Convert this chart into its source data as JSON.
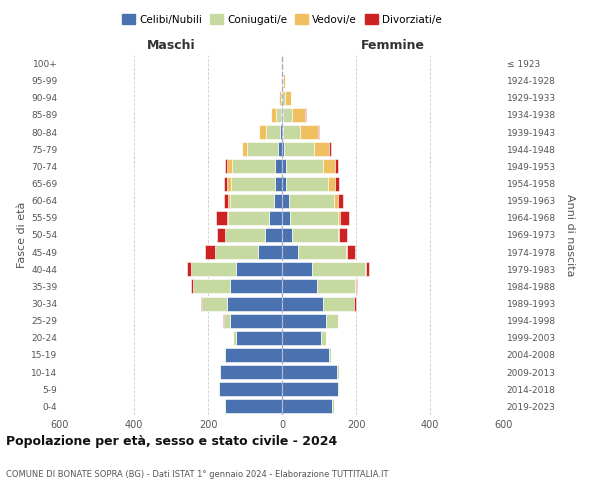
{
  "age_groups": [
    "0-4",
    "5-9",
    "10-14",
    "15-19",
    "20-24",
    "25-29",
    "30-34",
    "35-39",
    "40-44",
    "45-49",
    "50-54",
    "55-59",
    "60-64",
    "65-69",
    "70-74",
    "75-79",
    "80-84",
    "85-89",
    "90-94",
    "95-99",
    "100+"
  ],
  "birth_years": [
    "2019-2023",
    "2014-2018",
    "2009-2013",
    "2004-2008",
    "1999-2003",
    "1994-1998",
    "1989-1993",
    "1984-1988",
    "1979-1983",
    "1974-1978",
    "1969-1973",
    "1964-1968",
    "1959-1963",
    "1954-1958",
    "1949-1953",
    "1944-1948",
    "1939-1943",
    "1934-1938",
    "1929-1933",
    "1924-1928",
    "≤ 1923"
  ],
  "colors": {
    "celibi": "#4a72b0",
    "coniugati": "#c5d9a0",
    "vedovi": "#f0c060",
    "divorziati": "#cc2222"
  },
  "males": {
    "celibi": [
      155,
      170,
      168,
      155,
      125,
      140,
      150,
      140,
      125,
      65,
      45,
      35,
      22,
      18,
      20,
      12,
      5,
      3,
      0,
      0,
      0
    ],
    "coniugati": [
      2,
      2,
      2,
      2,
      8,
      18,
      65,
      100,
      120,
      115,
      108,
      112,
      118,
      120,
      115,
      82,
      38,
      12,
      4,
      1,
      0
    ],
    "vedovi": [
      0,
      0,
      0,
      0,
      0,
      0,
      0,
      0,
      2,
      2,
      2,
      3,
      5,
      10,
      15,
      15,
      20,
      15,
      5,
      0,
      0
    ],
    "divorziati": [
      0,
      0,
      0,
      0,
      0,
      2,
      5,
      5,
      10,
      25,
      20,
      28,
      12,
      10,
      5,
      0,
      0,
      0,
      0,
      0,
      0
    ]
  },
  "females": {
    "celibi": [
      135,
      150,
      148,
      128,
      105,
      120,
      112,
      95,
      82,
      42,
      28,
      22,
      18,
      12,
      10,
      5,
      3,
      2,
      0,
      0,
      0
    ],
    "coniugati": [
      5,
      5,
      5,
      5,
      15,
      30,
      82,
      102,
      142,
      132,
      122,
      128,
      122,
      112,
      102,
      82,
      45,
      25,
      8,
      2,
      1
    ],
    "vedovi": [
      0,
      0,
      0,
      0,
      0,
      0,
      0,
      2,
      2,
      3,
      5,
      8,
      10,
      20,
      30,
      40,
      50,
      35,
      15,
      5,
      2
    ],
    "divorziati": [
      0,
      0,
      0,
      0,
      0,
      2,
      5,
      5,
      10,
      20,
      22,
      22,
      15,
      10,
      8,
      5,
      2,
      2,
      0,
      0,
      0
    ]
  },
  "xlim": 600,
  "title": "Popolazione per età, sesso e stato civile - 2024",
  "subtitle": "COMUNE DI BONATE SOPRA (BG) - Dati ISTAT 1° gennaio 2024 - Elaborazione TUTTITALIA.IT",
  "xlabel_left": "Maschi",
  "xlabel_right": "Femmine",
  "ylabel_left": "Fasce di età",
  "ylabel_right": "Anni di nascita",
  "legend_labels": [
    "Celibi/Nubili",
    "Coniugati/e",
    "Vedovi/e",
    "Divorziati/e"
  ]
}
